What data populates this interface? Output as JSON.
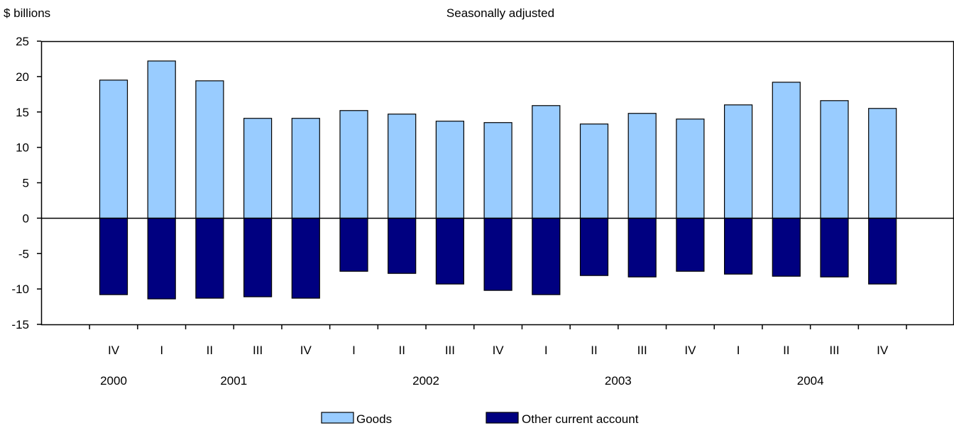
{
  "chart_data": {
    "type": "bar",
    "stacked": true,
    "ylabel": "$ billions",
    "subtitle": "Seasonally adjusted",
    "ylim": [
      -15,
      25
    ],
    "yticks": [
      25,
      20,
      15,
      10,
      5,
      0,
      -5,
      -10,
      -15
    ],
    "categories": [
      "IV",
      "I",
      "II",
      "III",
      "IV",
      "I",
      "II",
      "III",
      "IV",
      "I",
      "II",
      "III",
      "IV",
      "I",
      "II",
      "III",
      "IV"
    ],
    "years": [
      {
        "label": "2000",
        "first": 0,
        "last": 0
      },
      {
        "label": "2001",
        "first": 1,
        "last": 4
      },
      {
        "label": "2002",
        "first": 5,
        "last": 8
      },
      {
        "label": "2003",
        "first": 9,
        "last": 12
      },
      {
        "label": "2004",
        "first": 13,
        "last": 16
      }
    ],
    "series": [
      {
        "name": "Goods",
        "color": "#99ccff",
        "values": [
          19.5,
          22.2,
          19.4,
          14.1,
          14.1,
          15.2,
          14.7,
          13.7,
          13.5,
          15.9,
          13.3,
          14.8,
          14.0,
          16.0,
          19.2,
          16.6,
          15.5
        ]
      },
      {
        "name": "Other current account",
        "color": "#000080",
        "values": [
          -10.8,
          -11.4,
          -11.3,
          -11.1,
          -11.3,
          -7.5,
          -7.8,
          -9.3,
          -10.2,
          -10.8,
          -8.1,
          -8.3,
          -7.5,
          -7.9,
          -8.2,
          -8.3,
          -9.3
        ]
      }
    ],
    "grid": false,
    "legend_position": "bottom"
  }
}
